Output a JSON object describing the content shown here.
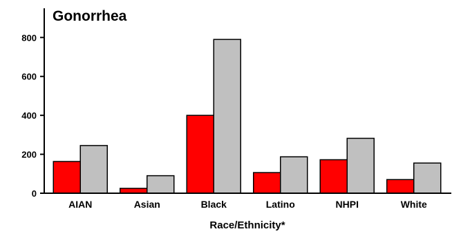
{
  "chart_data": {
    "type": "bar",
    "title": "Gonorrhea",
    "xlabel": "Race/Ethnicity*",
    "ylabel": "",
    "categories": [
      "AIAN",
      "Asian",
      "Black",
      "Latino",
      "NHPI",
      "White"
    ],
    "series": [
      {
        "color": "#ff0000",
        "values": [
          163,
          25,
          400,
          106,
          172,
          70
        ]
      },
      {
        "color": "#c0c0c0",
        "values": [
          245,
          90,
          790,
          187,
          282,
          155
        ]
      }
    ],
    "ylim": [
      0,
      950
    ],
    "yticks": [
      0,
      200,
      400,
      600,
      800
    ],
    "grid": false,
    "legend": "none"
  }
}
